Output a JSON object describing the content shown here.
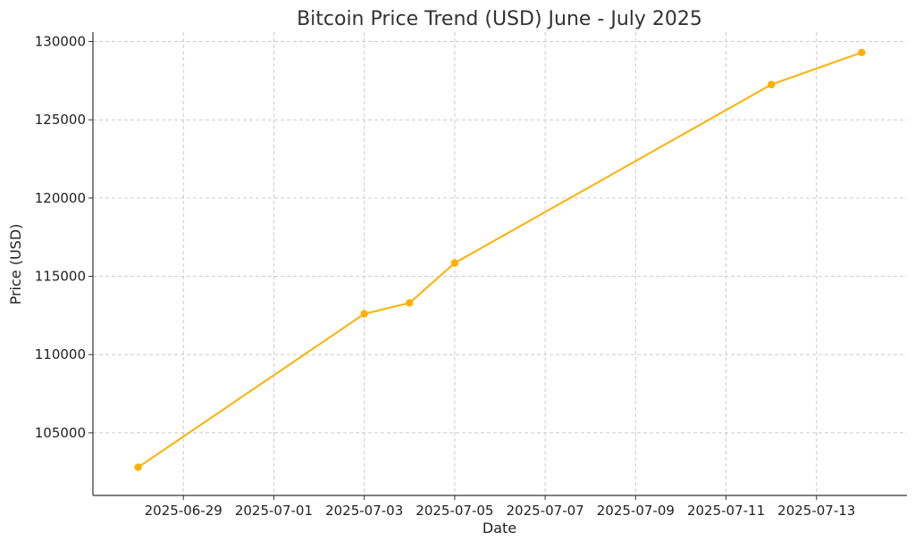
{
  "chart_data": {
    "type": "line",
    "title": "Bitcoin Price Trend (USD) June - July 2025",
    "xlabel": "Date",
    "ylabel": "Price (USD)",
    "x_axis": "date",
    "xlim": [
      "2025-06-27",
      "2025-07-15"
    ],
    "ylim": [
      101000,
      130600
    ],
    "x_ticks": [
      "2025-06-29",
      "2025-07-01",
      "2025-07-03",
      "2025-07-05",
      "2025-07-07",
      "2025-07-09",
      "2025-07-11",
      "2025-07-13"
    ],
    "y_ticks": [
      105000,
      110000,
      115000,
      120000,
      125000,
      130000
    ],
    "grid": true,
    "line_color": "#FFB000",
    "points": [
      {
        "x": "2025-06-28",
        "y": 102800
      },
      {
        "x": "2025-07-03",
        "y": 112600
      },
      {
        "x": "2025-07-04",
        "y": 113300
      },
      {
        "x": "2025-07-05",
        "y": 115850
      },
      {
        "x": "2025-07-12",
        "y": 127250
      },
      {
        "x": "2025-07-14",
        "y": 129300
      }
    ]
  }
}
